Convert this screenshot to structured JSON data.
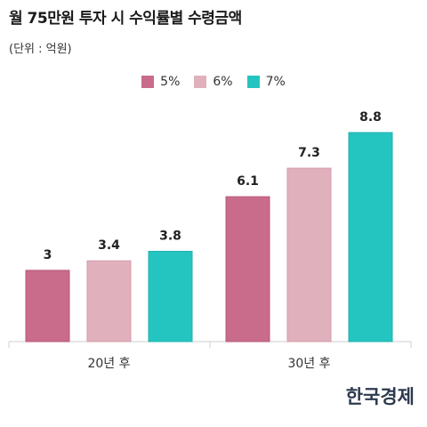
{
  "header": {
    "title": "월 75만원 투자 시 수익률별 수령금액",
    "unit": "(단위 : 억원)"
  },
  "brand": {
    "logo_text": "한국경제"
  },
  "colors": {
    "s5": "#c96b8b",
    "s6": "#e1b0bd",
    "s7": "#24c5c0"
  },
  "chart_data": {
    "type": "bar",
    "title": "월 75만원 투자 시 수익률별 수령금액",
    "ylabel": "(단위 : 억원)",
    "xlabel": "",
    "categories": [
      "20년 후",
      "30년 후"
    ],
    "series": [
      {
        "name": "5%",
        "values": [
          3,
          6.1
        ]
      },
      {
        "name": "6%",
        "values": [
          3.4,
          7.3
        ]
      },
      {
        "name": "7%",
        "values": [
          3.8,
          8.8
        ]
      }
    ],
    "value_labels": [
      [
        "3",
        "6.1"
      ],
      [
        "3.4",
        "7.3"
      ],
      [
        "3.8",
        "8.8"
      ]
    ],
    "ylim": [
      0,
      8.8
    ],
    "legend": "top-center",
    "grid": false
  }
}
